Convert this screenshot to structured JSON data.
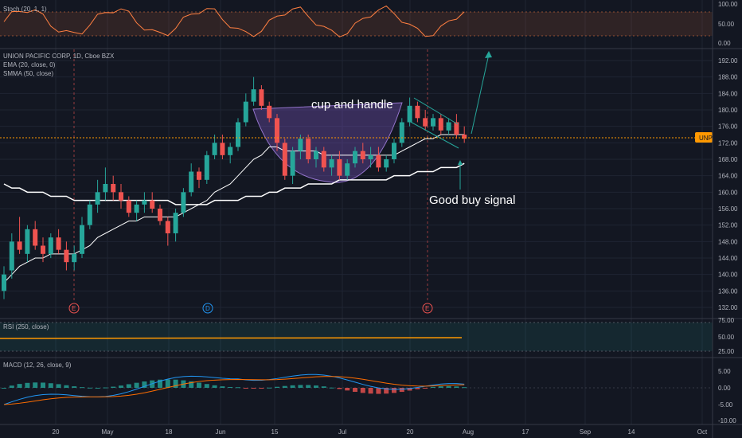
{
  "colors": {
    "background": "#131722",
    "grid": "#1f2433",
    "separator": "#363a45",
    "up": "#26a69a",
    "down": "#ef5350",
    "ema": "#ffffff",
    "smma": "#ffffff",
    "stoch": "#ff7f41",
    "rsi": "#ff9800",
    "macd_line": "#2196f3",
    "signal_line": "#ff6d00",
    "price_line": "#ff9800",
    "cup_fill": "#7e57c2",
    "annotation": "#26a69a",
    "event_marker": "#ef5350",
    "dividend_marker": "#2196f3"
  },
  "stoch": {
    "label": "Stoch (20, 1, 1)",
    "ticks": [
      "100.00",
      "50.00",
      "0.00"
    ]
  },
  "main": {
    "title_line": "UNION PACIFIC CORP, 1D, Cboe BZX",
    "ema_label": "EMA (20, close, 0)",
    "smma_label": "SMMA (50, close)",
    "price_ticks": [
      "192.00",
      "188.00",
      "184.00",
      "180.00",
      "176.00",
      "172.00",
      "168.00",
      "164.00",
      "160.00",
      "156.00",
      "152.00",
      "148.00",
      "144.00",
      "140.00",
      "136.00",
      "132.00"
    ],
    "price_tag": "UNP",
    "annotation_cup": "cup and handle",
    "annotation_buy": "Good buy signal",
    "markers": [
      {
        "letter": "E",
        "kind": "earnings"
      },
      {
        "letter": "D",
        "kind": "dividend"
      },
      {
        "letter": "E",
        "kind": "earnings"
      }
    ]
  },
  "rsi": {
    "label": "RSI (250, close)",
    "ticks": [
      "75.00",
      "50.00",
      "25.00"
    ]
  },
  "macd": {
    "label": "MACD (12, 26, close, 9)",
    "ticks": [
      "5.00",
      "0.00",
      "-5.00",
      "-10.00"
    ]
  },
  "time_axis": {
    "labels": [
      "20",
      "May",
      "18",
      "Jun",
      "15",
      "Jul",
      "20",
      "Aug",
      "17",
      "Sep",
      "14",
      "Oct"
    ]
  },
  "chart_data": {
    "type": "candlestick",
    "symbol": "UNP",
    "price_range": [
      130,
      196
    ],
    "last_price": 173,
    "candles": [
      {
        "o": 136,
        "h": 142,
        "l": 134,
        "c": 140
      },
      {
        "o": 141,
        "h": 150,
        "l": 139,
        "c": 148
      },
      {
        "o": 148,
        "h": 154,
        "l": 145,
        "c": 146
      },
      {
        "o": 145,
        "h": 152,
        "l": 143,
        "c": 151
      },
      {
        "o": 151,
        "h": 153,
        "l": 146,
        "c": 147
      },
      {
        "o": 147,
        "h": 149,
        "l": 143,
        "c": 145
      },
      {
        "o": 145,
        "h": 150,
        "l": 144,
        "c": 149
      },
      {
        "o": 149,
        "h": 151,
        "l": 145,
        "c": 146
      },
      {
        "o": 146,
        "h": 148,
        "l": 141,
        "c": 143
      },
      {
        "o": 143,
        "h": 147,
        "l": 141,
        "c": 145
      },
      {
        "o": 145,
        "h": 154,
        "l": 144,
        "c": 152
      },
      {
        "o": 152,
        "h": 158,
        "l": 151,
        "c": 157
      },
      {
        "o": 157,
        "h": 163,
        "l": 155,
        "c": 160
      },
      {
        "o": 160,
        "h": 166,
        "l": 158,
        "c": 162
      },
      {
        "o": 162,
        "h": 164,
        "l": 158,
        "c": 160
      },
      {
        "o": 160,
        "h": 162,
        "l": 156,
        "c": 158
      },
      {
        "o": 158,
        "h": 159,
        "l": 154,
        "c": 155
      },
      {
        "o": 155,
        "h": 158,
        "l": 153,
        "c": 157
      },
      {
        "o": 157,
        "h": 160,
        "l": 155,
        "c": 158
      },
      {
        "o": 158,
        "h": 160,
        "l": 155,
        "c": 156
      },
      {
        "o": 156,
        "h": 157,
        "l": 152,
        "c": 153
      },
      {
        "o": 153,
        "h": 154,
        "l": 147,
        "c": 150
      },
      {
        "o": 150,
        "h": 156,
        "l": 148,
        "c": 155
      },
      {
        "o": 155,
        "h": 161,
        "l": 154,
        "c": 160
      },
      {
        "o": 160,
        "h": 167,
        "l": 159,
        "c": 165
      },
      {
        "o": 165,
        "h": 166,
        "l": 161,
        "c": 163
      },
      {
        "o": 163,
        "h": 170,
        "l": 162,
        "c": 169
      },
      {
        "o": 169,
        "h": 174,
        "l": 168,
        "c": 172
      },
      {
        "o": 172,
        "h": 174,
        "l": 168,
        "c": 169
      },
      {
        "o": 169,
        "h": 172,
        "l": 167,
        "c": 171
      },
      {
        "o": 171,
        "h": 178,
        "l": 170,
        "c": 177
      },
      {
        "o": 177,
        "h": 184,
        "l": 176,
        "c": 182
      },
      {
        "o": 182,
        "h": 188,
        "l": 181,
        "c": 185
      },
      {
        "o": 185,
        "h": 186,
        "l": 180,
        "c": 181
      },
      {
        "o": 181,
        "h": 182,
        "l": 177,
        "c": 178
      },
      {
        "o": 178,
        "h": 179,
        "l": 170,
        "c": 172
      },
      {
        "o": 172,
        "h": 173,
        "l": 163,
        "c": 164
      },
      {
        "o": 164,
        "h": 171,
        "l": 162,
        "c": 170
      },
      {
        "o": 170,
        "h": 174,
        "l": 168,
        "c": 173
      },
      {
        "o": 173,
        "h": 174,
        "l": 167,
        "c": 168
      },
      {
        "o": 168,
        "h": 171,
        "l": 166,
        "c": 170
      },
      {
        "o": 170,
        "h": 171,
        "l": 165,
        "c": 166
      },
      {
        "o": 166,
        "h": 169,
        "l": 164,
        "c": 168
      },
      {
        "o": 168,
        "h": 170,
        "l": 163,
        "c": 164
      },
      {
        "o": 164,
        "h": 168,
        "l": 163,
        "c": 167
      },
      {
        "o": 167,
        "h": 171,
        "l": 166,
        "c": 170
      },
      {
        "o": 170,
        "h": 172,
        "l": 167,
        "c": 168
      },
      {
        "o": 168,
        "h": 171,
        "l": 166,
        "c": 169
      },
      {
        "o": 169,
        "h": 171,
        "l": 165,
        "c": 166
      },
      {
        "o": 166,
        "h": 169,
        "l": 165,
        "c": 168
      },
      {
        "o": 168,
        "h": 173,
        "l": 167,
        "c": 172
      },
      {
        "o": 172,
        "h": 178,
        "l": 171,
        "c": 177
      },
      {
        "o": 177,
        "h": 183,
        "l": 176,
        "c": 181
      },
      {
        "o": 181,
        "h": 182,
        "l": 177,
        "c": 178
      },
      {
        "o": 178,
        "h": 180,
        "l": 175,
        "c": 176
      },
      {
        "o": 176,
        "h": 179,
        "l": 175,
        "c": 178
      },
      {
        "o": 178,
        "h": 179,
        "l": 174,
        "c": 175
      },
      {
        "o": 175,
        "h": 178,
        "l": 174,
        "c": 177
      },
      {
        "o": 177,
        "h": 179,
        "l": 173,
        "c": 174
      },
      {
        "o": 174,
        "h": 176,
        "l": 172,
        "c": 173
      }
    ],
    "ema20": [
      138,
      140,
      142,
      143,
      144,
      144,
      145,
      145,
      145,
      145,
      146,
      147,
      149,
      150,
      151,
      152,
      153,
      153,
      154,
      154,
      154,
      154,
      154,
      155,
      156,
      157,
      158,
      160,
      161,
      162,
      164,
      166,
      168,
      169,
      171,
      171,
      170,
      170,
      170,
      170,
      170,
      169,
      169,
      169,
      169,
      169,
      169,
      169,
      169,
      169,
      169,
      170,
      171,
      172,
      173,
      173,
      174,
      174,
      174,
      174
    ],
    "smma50": [
      162,
      161,
      161,
      160,
      160,
      160,
      159,
      159,
      159,
      158,
      158,
      158,
      158,
      158,
      158,
      158,
      158,
      158,
      158,
      158,
      158,
      158,
      157,
      157,
      157,
      157,
      157,
      158,
      158,
      158,
      158,
      159,
      159,
      159,
      160,
      160,
      161,
      161,
      161,
      162,
      162,
      162,
      162,
      163,
      163,
      163,
      163,
      163,
      163,
      163,
      164,
      164,
      164,
      165,
      165,
      165,
      166,
      166,
      166,
      167
    ]
  }
}
